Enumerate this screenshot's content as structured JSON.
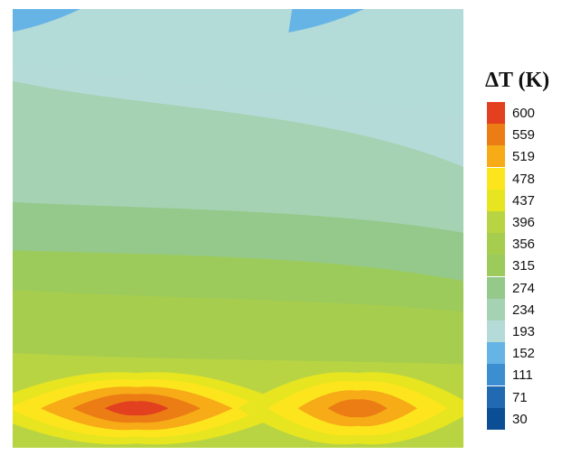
{
  "chart_data": {
    "type": "heatmap",
    "title": "",
    "xlabel": "",
    "ylabel": "",
    "colorbar": {
      "title": "ΔT (K)",
      "levels": [
        "600",
        "559",
        "519",
        "478",
        "437",
        "396",
        "356",
        "315",
        "274",
        "234",
        "193",
        "152",
        "111",
        "71",
        "30"
      ],
      "colors": [
        "#e2401f",
        "#ec7d14",
        "#f6ab17",
        "#fde51d",
        "#e7e51f",
        "#b9d443",
        "#a6cd4d",
        "#9ccb5c",
        "#94c98b",
        "#a5d2b2",
        "#b5dbd9",
        "#66b4e6",
        "#3b8fd1",
        "#2169b1",
        "#0c4e96"
      ]
    },
    "background_color": "#b3dbd8",
    "bands": [
      {
        "level": "193",
        "y_left": 0.6,
        "y_mid": 0.9,
        "y_right": 1.25
      },
      {
        "level": "234",
        "y_left": 0.82,
        "y_mid": 1.15,
        "y_right": 1.8
      },
      {
        "level": "274",
        "y_left": 2.2,
        "y_mid": 2.28,
        "y_right": 2.55
      },
      {
        "level": "315",
        "y_left": 2.75,
        "y_mid": 2.8,
        "y_right": 3.1
      },
      {
        "level": "356",
        "y_left": 3.2,
        "y_mid": 3.3,
        "y_right": 3.45
      },
      {
        "level": "396",
        "y_left": 3.92,
        "y_mid": 4.0,
        "y_right": 4.05
      }
    ],
    "hot_spots": [
      {
        "level_min": "437",
        "level_max": "600",
        "x": [
          0.0,
          0.55
        ],
        "y": 4.55
      },
      {
        "level_min": "437",
        "level_max": "559",
        "x": [
          0.58,
          0.95
        ],
        "y": 4.55
      }
    ],
    "cold_spots": [
      {
        "level": "152",
        "x": [
          0.0,
          0.15
        ],
        "y": 0.0
      },
      {
        "level": "152",
        "x": [
          0.62,
          0.78
        ],
        "y": 0.0
      }
    ]
  }
}
